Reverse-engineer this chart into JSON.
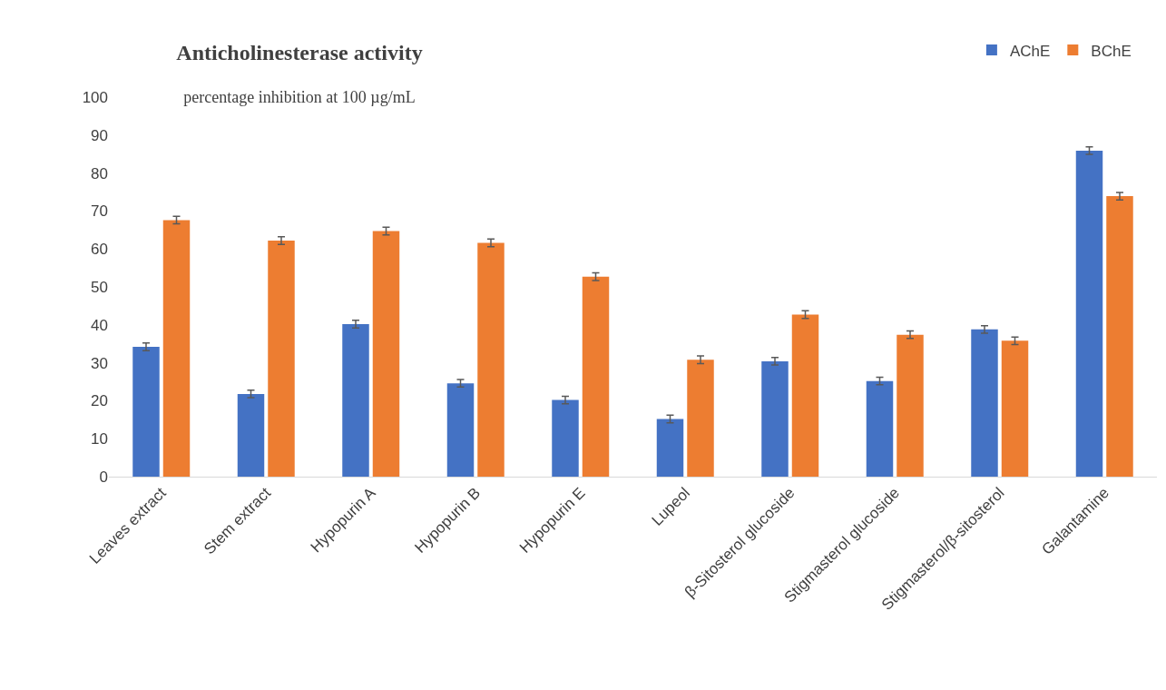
{
  "chart_data": {
    "type": "bar",
    "title": "Anticholinesterase activity",
    "subtitle": "percentage inhibition at 100 µg/mL",
    "categories": [
      "Leaves extract",
      "Stem extract",
      "Hypopurin A",
      "Hypopurin B",
      "Hypopurin E",
      "Lupeol",
      "β-Sitosterol glucoside",
      "Stigmasterol glucoside",
      "Stigmasterol/β-sitosterol",
      "Galantamine"
    ],
    "series": [
      {
        "name": "AChE",
        "color": "#4472c4",
        "values": [
          34.2,
          21.8,
          40.2,
          24.6,
          20.2,
          15.2,
          30.4,
          25.2,
          38.8,
          85.9
        ],
        "errors": [
          1,
          1,
          1,
          1,
          1,
          1,
          1,
          1,
          1,
          1
        ]
      },
      {
        "name": "BChE",
        "color": "#ed7d31",
        "values": [
          67.6,
          62.2,
          64.7,
          61.6,
          52.7,
          30.8,
          42.7,
          37.4,
          35.8,
          73.9
        ],
        "errors": [
          1,
          1,
          1,
          1,
          1,
          1,
          1,
          1,
          1,
          1
        ]
      }
    ],
    "ylim": [
      0,
      100
    ],
    "yticks": [
      0,
      10,
      20,
      30,
      40,
      50,
      60,
      70,
      80,
      90,
      100
    ],
    "grid": false,
    "legend": "top right"
  }
}
